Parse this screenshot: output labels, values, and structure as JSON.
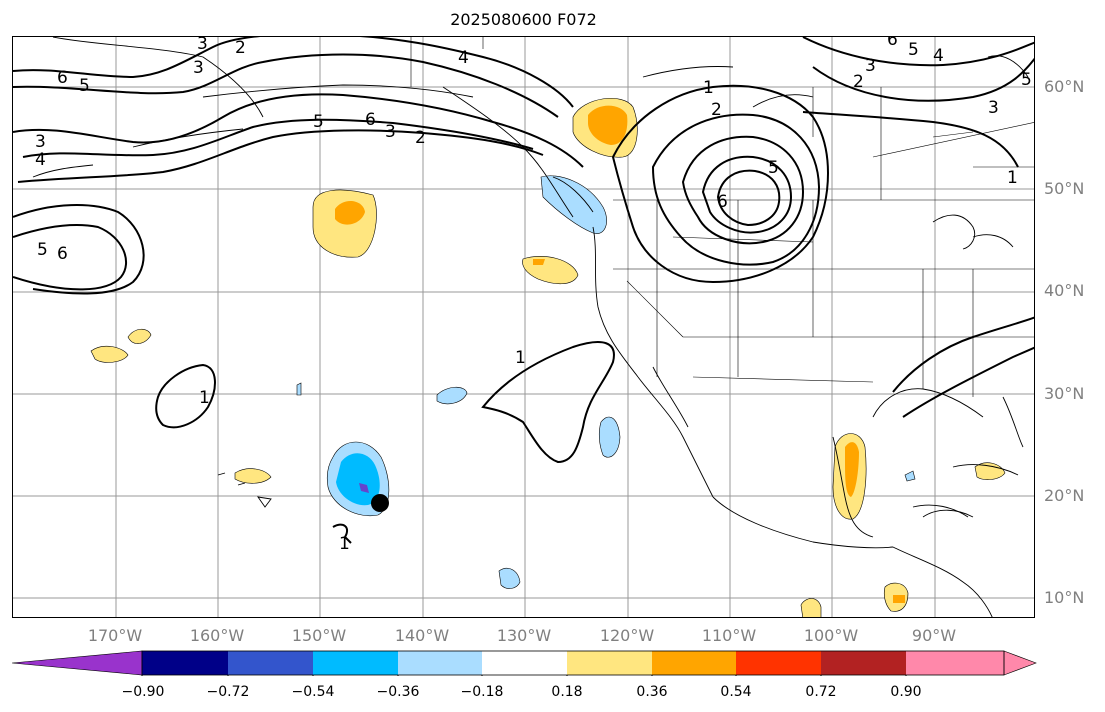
{
  "title": "2025080600 F072",
  "lat_labels": [
    "60°N",
    "50°N",
    "40°N",
    "30°N",
    "20°N",
    "10°N"
  ],
  "lon_labels": [
    "170°W",
    "160°W",
    "150°W",
    "140°W",
    "130°W",
    "120°W",
    "110°W",
    "100°W",
    "90°W"
  ],
  "contour_labels": [
    "1",
    "2",
    "3",
    "4",
    "5",
    "6"
  ],
  "colorbar": {
    "tick_labels": [
      "−0.90",
      "−0.72",
      "−0.54",
      "−0.36",
      "−0.18",
      "0.18",
      "0.36",
      "0.54",
      "0.72",
      "0.90"
    ],
    "colors": [
      "#9933cc",
      "#000088",
      "#3355cc",
      "#00bbff",
      "#aaddff",
      "#ffffff",
      "#ffe680",
      "#ffa500",
      "#ff3300",
      "#b22222",
      "#ff88aa"
    ]
  },
  "colors": {
    "light_blue": "#aaddff",
    "cyan": "#00bbff",
    "purple": "#6644cc",
    "yellow": "#ffe680",
    "orange": "#ffa500",
    "gridline": "#999999",
    "axis_label": "#808080"
  }
}
